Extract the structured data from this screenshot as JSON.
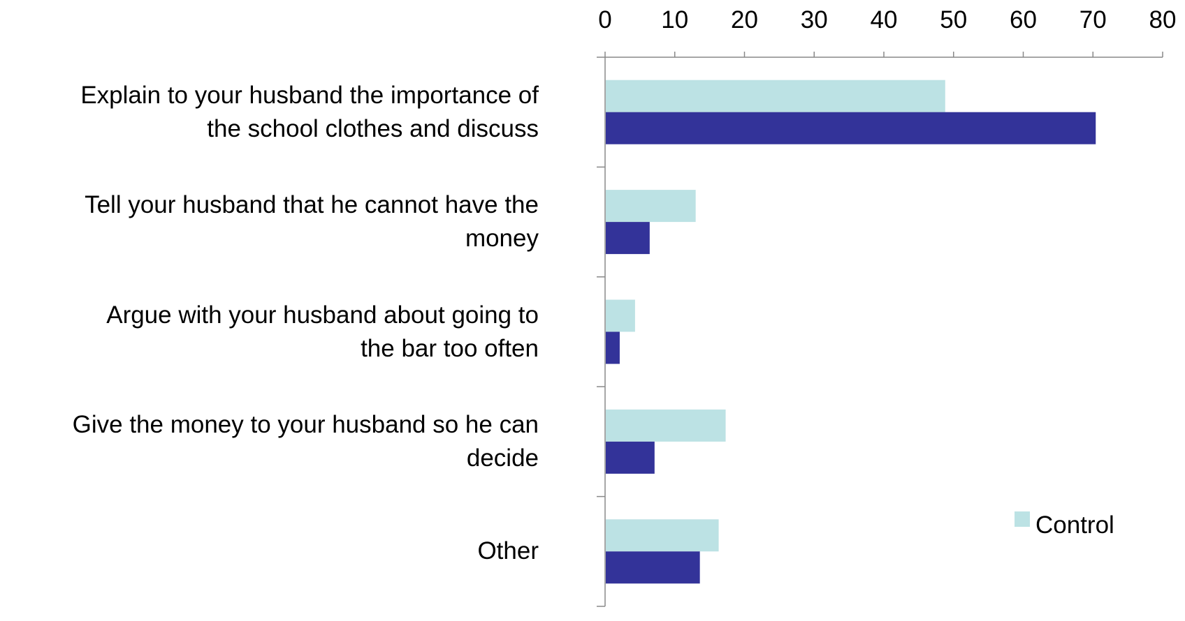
{
  "chart_data": {
    "type": "bar",
    "orientation": "horizontal",
    "categories": [
      [
        "Explain to your husband the importance of",
        "the school clothes and discuss"
      ],
      [
        "Tell your husband that he cannot have the",
        "money"
      ],
      [
        "Argue with your husband about going to",
        "the bar too often"
      ],
      [
        "Give the money to your husband so he can",
        "decide"
      ],
      [
        "Other"
      ]
    ],
    "series": [
      {
        "name": "Control",
        "color": "#bce2e4",
        "values": [
          48.8,
          13.0,
          4.3,
          17.3,
          16.3
        ]
      },
      {
        "color": "#333399",
        "values": [
          70.4,
          6.4,
          2.1,
          7.1,
          13.6
        ]
      }
    ],
    "xlim": [
      0,
      80
    ],
    "xticks": [
      "0",
      "10",
      "20",
      "30",
      "40",
      "50",
      "60",
      "70",
      "80"
    ],
    "axis_position": "top",
    "grid": false,
    "legend_position": "right",
    "title": "",
    "xlabel": "",
    "ylabel": ""
  }
}
